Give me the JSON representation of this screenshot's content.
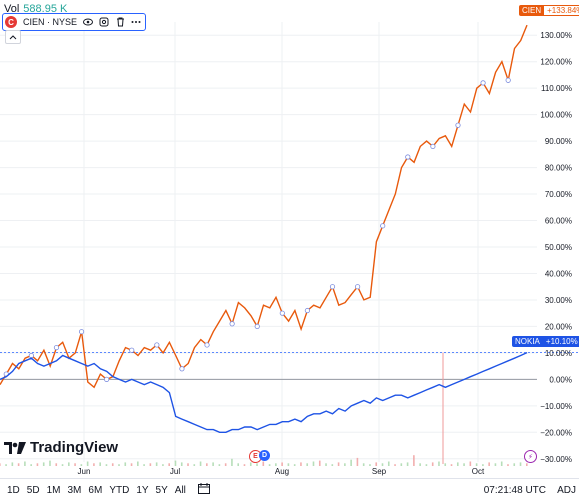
{
  "header": {
    "vol_label": "Vol",
    "vol_value": "588.95 K",
    "symbol": "CIEN · NYSE",
    "logo_letter": "C",
    "collapse_icon": "chevron-up-icon"
  },
  "tags": {
    "cien_name": "CIEN",
    "cien_value": "+133.84%",
    "nok_name": "NOKIA",
    "nok_value": "+10.10%"
  },
  "colors": {
    "cien": "#e8590c",
    "nokia": "#1e53e5",
    "grid": "#eef0f3",
    "baseline": "#9598a1",
    "crosshair": "#2962ff"
  },
  "brand": "TradingView",
  "events": [
    "E",
    "D"
  ],
  "flash_icon": "lightning-icon",
  "bottom": {
    "ranges": [
      "1D",
      "5D",
      "1M",
      "3M",
      "6M",
      "YTD",
      "1Y",
      "5Y",
      "All"
    ],
    "compare_icon": "calendar-range-icon",
    "time": "07:21:48 UTC",
    "adj": "ADJ"
  },
  "chart_data": {
    "type": "line",
    "y_ticks": [
      "130.00%",
      "120.00%",
      "110.00%",
      "100.00%",
      "90.00%",
      "80.00%",
      "70.00%",
      "60.00%",
      "50.00%",
      "40.00%",
      "30.00%",
      "20.00%",
      "10.00%",
      "0.00%",
      "−10.00%",
      "−20.00%",
      "−30.00%"
    ],
    "x_ticks": [
      "Jun",
      "Jul",
      "Aug",
      "Sep",
      "Oct"
    ],
    "ylim": [
      -35,
      135
    ],
    "series": [
      {
        "name": "CIEN",
        "values": [
          -2,
          2,
          6,
          4,
          8,
          9,
          7,
          11,
          5,
          12,
          14,
          8,
          10,
          18,
          -1,
          -3,
          2,
          0,
          1,
          7,
          12,
          11,
          9,
          12,
          11,
          13,
          10,
          14,
          9,
          4,
          6,
          12,
          15,
          13,
          18,
          22,
          26,
          21,
          29,
          27,
          24,
          20,
          28,
          27,
          31,
          25,
          22,
          26,
          19,
          26,
          28,
          27,
          31,
          35,
          28,
          29,
          32,
          35,
          30,
          31,
          52,
          58,
          64,
          70,
          80,
          84,
          82,
          88,
          90,
          88,
          91,
          92,
          88,
          96,
          104,
          101,
          110,
          112,
          108,
          116,
          120,
          113,
          125,
          128,
          133.84
        ]
      },
      {
        "name": "NOKIA",
        "values": [
          0,
          1,
          3,
          6,
          7,
          8,
          6,
          5,
          6,
          7,
          9,
          8,
          7,
          6,
          5,
          6,
          4,
          3,
          1,
          0,
          -1,
          0,
          -1,
          -2,
          -1,
          -2,
          -3,
          -5,
          -14,
          -15,
          -16,
          -17,
          -18,
          -19,
          -19,
          -20,
          -20,
          -19,
          -19,
          -18,
          -18,
          -19,
          -18,
          -17,
          -17,
          -16,
          -16,
          -15,
          -16,
          -14,
          -13,
          -13,
          -12,
          -13,
          -11,
          -12,
          -10,
          -9,
          -8,
          -9,
          -7,
          -8,
          -7,
          -6,
          -6,
          -7,
          -6,
          -5,
          -4,
          -3,
          -2,
          -3,
          -2,
          -1,
          0,
          1,
          2,
          3,
          4,
          5,
          6,
          7,
          8,
          9,
          10.1
        ]
      }
    ],
    "volume": [
      3,
      2,
      4,
      3,
      5,
      2,
      3,
      4,
      6,
      3,
      2,
      4,
      3,
      2,
      5,
      3,
      4,
      2,
      3,
      2,
      4,
      3,
      5,
      2,
      3,
      4,
      2,
      3,
      6,
      4,
      3,
      2,
      5,
      3,
      4,
      2,
      3,
      8,
      3,
      2,
      4,
      3,
      5,
      2,
      3,
      4,
      3,
      2,
      4,
      3,
      5,
      6,
      3,
      2,
      4,
      3,
      7,
      9,
      3,
      2,
      4,
      3,
      5,
      2,
      3,
      4,
      12,
      3,
      2,
      4,
      5,
      3,
      2,
      4,
      3,
      5,
      3,
      2,
      4,
      3,
      5,
      2,
      3,
      4,
      3
    ]
  }
}
